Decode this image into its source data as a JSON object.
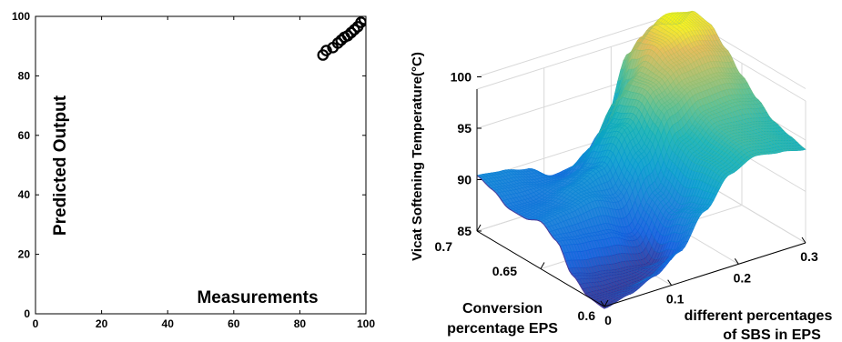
{
  "chart_data": [
    {
      "type": "scatter",
      "xlabel": "Measurements",
      "ylabel": "Predicted Output",
      "xlim": [
        0,
        100
      ],
      "ylim": [
        0,
        100
      ],
      "xticks": [
        0,
        20,
        40,
        60,
        80,
        100
      ],
      "yticks": [
        0,
        20,
        40,
        60,
        80,
        100
      ],
      "grid": false,
      "series": [
        {
          "marker": "circle-open",
          "color": "#000000",
          "x": [
            87,
            88,
            90,
            91.5,
            92.5,
            93.5,
            94.5,
            95.5,
            96.5,
            97.5,
            98.5,
            99.5
          ],
          "y": [
            87,
            88.5,
            89.5,
            91,
            92,
            93,
            93.5,
            94.5,
            95.5,
            96.5,
            98,
            99
          ]
        }
      ]
    },
    {
      "type": "surface",
      "xlabel": "Conversion percentage EPS",
      "ylabel": "different percentages of SBS in EPS",
      "zlabel": "Vicat Softening Temperature(°C)",
      "xlim": [
        0.6,
        0.7
      ],
      "ylim": [
        0,
        0.3
      ],
      "zlim": [
        85,
        100
      ],
      "xticks": [
        "0.6",
        "0.65",
        "0.7"
      ],
      "yticks": [
        "0",
        "0.1",
        "0.2",
        "0.3"
      ],
      "zticks": [
        "85",
        "90",
        "95",
        "100"
      ],
      "colormap": "parula",
      "grid": true,
      "x": [
        0.6,
        0.6125,
        0.625,
        0.6375,
        0.65,
        0.6625,
        0.675,
        0.6875,
        0.7
      ],
      "y": [
        0,
        0.0375,
        0.075,
        0.1125,
        0.15,
        0.1875,
        0.225,
        0.2625,
        0.3
      ],
      "z": [
        [
          84.8,
          85.0,
          86.2,
          88.6,
          89.6,
          89.0,
          89.0,
          89.9,
          90.4
        ],
        [
          85.4,
          84.9,
          85.6,
          88.2,
          89.9,
          89.4,
          88.9,
          89.6,
          90.1
        ],
        [
          86.4,
          85.0,
          85.2,
          87.9,
          90.4,
          90.6,
          89.6,
          89.1,
          89.5
        ],
        [
          88.0,
          86.0,
          84.9,
          86.8,
          89.6,
          91.6,
          90.6,
          88.8,
          88.1
        ],
        [
          91.2,
          90.4,
          89.3,
          90.2,
          93.1,
          94.9,
          94.0,
          91.0,
          88.4
        ],
        [
          94.0,
          94.2,
          94.0,
          94.6,
          97.0,
          98.1,
          97.8,
          94.9,
          91.0
        ],
        [
          95.0,
          95.5,
          95.8,
          96.5,
          98.2,
          99.5,
          100.5,
          100.2,
          97.6
        ],
        [
          94.6,
          95.1,
          95.5,
          96.7,
          98.3,
          100.0,
          101.3,
          101.6,
          99.6
        ],
        [
          94.1,
          94.5,
          95.0,
          96.2,
          97.6,
          99.3,
          100.8,
          101.1,
          99.0
        ]
      ]
    }
  ]
}
